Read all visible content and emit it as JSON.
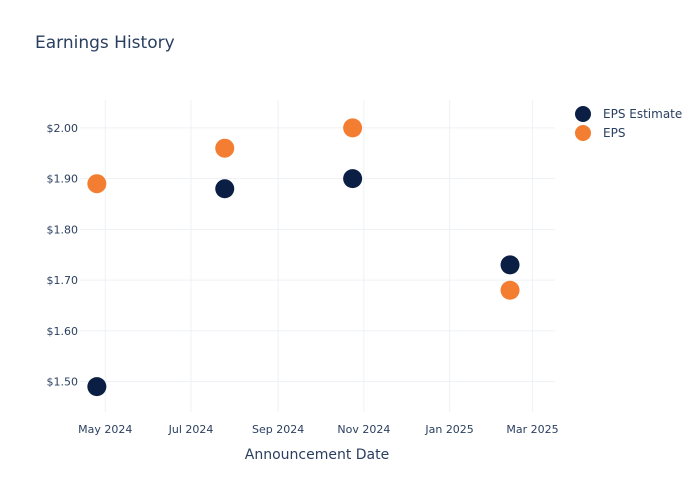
{
  "chart_data": {
    "type": "scatter",
    "title": "Earnings History",
    "xlabel": "Announcement Date",
    "ylabel": "",
    "x_ticks": [
      "May 2024",
      "Jul 2024",
      "Sep 2024",
      "Nov 2024",
      "Jan 2025",
      "Mar 2025"
    ],
    "y_ticks": [
      "$1.50",
      "$1.60",
      "$1.70",
      "$1.80",
      "$1.90",
      "$2.00"
    ],
    "ylim": [
      1.44,
      2.055
    ],
    "xlim": [
      "2024-04-13",
      "2025-03-17"
    ],
    "grid": true,
    "legend_position": "top-right",
    "series": [
      {
        "name": "EPS Estimate",
        "color": "#0b1f45",
        "points": [
          {
            "x": "2024-04-25",
            "y": 1.49
          },
          {
            "x": "2024-07-25",
            "y": 1.88
          },
          {
            "x": "2024-10-24",
            "y": 1.9
          },
          {
            "x": "2025-02-13",
            "y": 1.73
          }
        ]
      },
      {
        "name": "EPS",
        "color": "#f37e32",
        "points": [
          {
            "x": "2024-04-25",
            "y": 1.89
          },
          {
            "x": "2024-07-25",
            "y": 1.96
          },
          {
            "x": "2024-10-24",
            "y": 2.0
          },
          {
            "x": "2025-02-13",
            "y": 1.68
          }
        ]
      }
    ]
  }
}
